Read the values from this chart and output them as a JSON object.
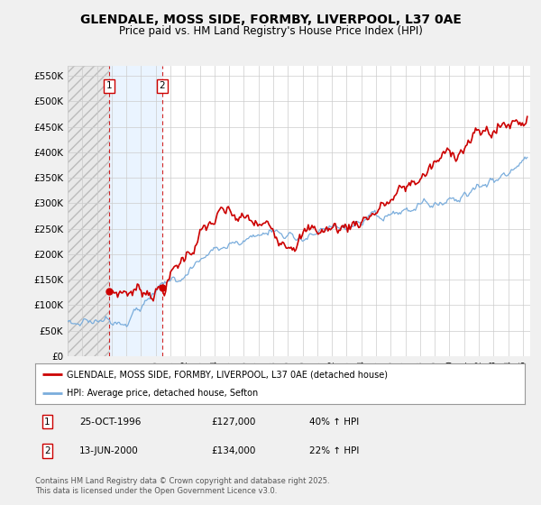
{
  "title": "GLENDALE, MOSS SIDE, FORMBY, LIVERPOOL, L37 0AE",
  "subtitle": "Price paid vs. HM Land Registry's House Price Index (HPI)",
  "ylim": [
    0,
    570000
  ],
  "xlim_start": 1994.0,
  "xlim_end": 2025.5,
  "sale1_date": 1996.82,
  "sale1_price": 127000,
  "sale1_label": "25-OCT-1996",
  "sale1_price_str": "£127,000",
  "sale1_hpi": "40% ↑ HPI",
  "sale2_date": 2000.45,
  "sale2_price": 134000,
  "sale2_label": "13-JUN-2000",
  "sale2_price_str": "£134,000",
  "sale2_hpi": "22% ↑ HPI",
  "legend_red": "GLENDALE, MOSS SIDE, FORMBY, LIVERPOOL, L37 0AE (detached house)",
  "legend_blue": "HPI: Average price, detached house, Sefton",
  "footer": "Contains HM Land Registry data © Crown copyright and database right 2025.\nThis data is licensed under the Open Government Licence v3.0.",
  "background_color": "#f0f0f0",
  "plot_bg": "#ffffff",
  "red_color": "#cc0000",
  "blue_color": "#7aaddc"
}
